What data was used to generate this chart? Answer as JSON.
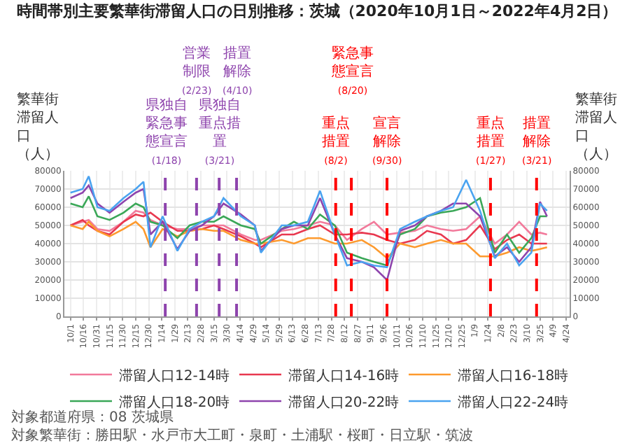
{
  "chart_data": {
    "type": "line",
    "title": "時間帯別主要繁華街滞留人口の日別推移：茨城（2020年10月1日～2022年4月2日）",
    "ylabel": "繁華街滞留人口（人）",
    "y2label": "繁華街滞留人口（人）",
    "x": [
      "2020-10-01",
      "2020-10-15",
      "2020-10-22",
      "2020-11-01",
      "2020-11-15",
      "2020-12-01",
      "2020-12-15",
      "2020-12-24",
      "2021-01-01",
      "2021-01-15",
      "2021-02-01",
      "2021-02-15",
      "2021-03-01",
      "2021-03-15",
      "2021-03-26",
      "2021-04-15",
      "2021-05-01",
      "2021-05-08",
      "2021-06-01",
      "2021-06-15",
      "2021-07-01",
      "2021-07-15",
      "2021-08-01",
      "2021-08-15",
      "2021-09-01",
      "2021-09-15",
      "2021-09-30",
      "2021-10-15",
      "2021-11-01",
      "2021-11-15",
      "2021-12-01",
      "2021-12-15",
      "2021-12-30",
      "2022-01-15",
      "2022-02-01",
      "2022-02-15",
      "2022-03-01",
      "2022-03-15",
      "2022-03-25",
      "2022-04-02"
    ],
    "series": [
      {
        "name": "滞留人口12-14時",
        "color": "#f27a9b",
        "values": [
          50000,
          52000,
          53000,
          48000,
          47000,
          52000,
          58000,
          57000,
          53000,
          50000,
          48000,
          48000,
          50000,
          50000,
          50000,
          45000,
          42000,
          42000,
          47000,
          48000,
          50000,
          52000,
          50000,
          42000,
          48000,
          52000,
          45000,
          46000,
          47000,
          50000,
          48000,
          47000,
          48000,
          55000,
          40000,
          45000,
          52000,
          45000,
          46000,
          45000
        ]
      },
      {
        "name": "滞留人口14-16時",
        "color": "#e8384f",
        "values": [
          50000,
          53000,
          50000,
          47000,
          45000,
          52000,
          56000,
          55000,
          57000,
          52000,
          47000,
          47000,
          48000,
          50000,
          48000,
          44000,
          40000,
          38000,
          45000,
          45000,
          48000,
          50000,
          45000,
          45000,
          46000,
          45000,
          42000,
          40000,
          42000,
          47000,
          45000,
          40000,
          42000,
          50000,
          37000,
          42000,
          45000,
          40000,
          40000,
          40000
        ]
      },
      {
        "name": "滞留人口16-18時",
        "color": "#fd9a2e",
        "values": [
          50000,
          48000,
          52000,
          47000,
          44000,
          48000,
          52000,
          48000,
          38000,
          48000,
          44000,
          47000,
          48000,
          47000,
          47000,
          42000,
          40000,
          40000,
          42000,
          40000,
          43000,
          43000,
          40000,
          40000,
          42000,
          38000,
          32000,
          40000,
          38000,
          40000,
          42000,
          40000,
          40000,
          33000,
          33000,
          35000,
          38000,
          36000,
          37000,
          38000
        ]
      },
      {
        "name": "滞留人口18-20時",
        "color": "#3aa757",
        "values": [
          62000,
          60000,
          66000,
          55000,
          53000,
          57000,
          62000,
          60000,
          52000,
          50000,
          43000,
          50000,
          52000,
          52000,
          55000,
          50000,
          48000,
          40000,
          48000,
          52000,
          48000,
          56000,
          50000,
          35000,
          32000,
          30000,
          28000,
          45000,
          48000,
          55000,
          57000,
          58000,
          60000,
          65000,
          35000,
          45000,
          35000,
          43000,
          55000,
          55000
        ]
      },
      {
        "name": "滞留人口20-22時",
        "color": "#8e44ad",
        "values": [
          65000,
          68000,
          72000,
          62000,
          57000,
          63000,
          68000,
          70000,
          45000,
          52000,
          37000,
          47000,
          50000,
          55000,
          62000,
          56000,
          50000,
          36000,
          48000,
          50000,
          50000,
          65000,
          45000,
          32000,
          30000,
          27000,
          20000,
          47000,
          50000,
          55000,
          58000,
          62000,
          62000,
          55000,
          33000,
          38000,
          30000,
          38000,
          63000,
          55000
        ]
      },
      {
        "name": "滞留人口22-24時",
        "color": "#4aa3f0",
        "values": [
          68000,
          70000,
          77000,
          60000,
          58000,
          65000,
          70000,
          74000,
          38000,
          55000,
          36000,
          48000,
          52000,
          55000,
          65000,
          55000,
          50000,
          35000,
          50000,
          50000,
          52000,
          69000,
          45000,
          28000,
          30000,
          28000,
          27000,
          48000,
          52000,
          55000,
          58000,
          60000,
          75000,
          58000,
          32000,
          40000,
          28000,
          35000,
          62000,
          58000
        ]
      }
    ],
    "xlim": [
      "2020-09-24",
      "2022-04-28"
    ],
    "xticks": [
      {
        "value": "2020-10-01",
        "label": "10/1"
      },
      {
        "value": "2020-10-16",
        "label": "10/16"
      },
      {
        "value": "2020-10-31",
        "label": "10/31"
      },
      {
        "value": "2020-11-15",
        "label": "11/15"
      },
      {
        "value": "2020-11-30",
        "label": "11/30"
      },
      {
        "value": "2020-12-15",
        "label": "12/15"
      },
      {
        "value": "2020-12-30",
        "label": "12/30"
      },
      {
        "value": "2021-01-14",
        "label": "1/14"
      },
      {
        "value": "2021-01-29",
        "label": "1/29"
      },
      {
        "value": "2021-02-13",
        "label": "2/13"
      },
      {
        "value": "2021-02-28",
        "label": "2/28"
      },
      {
        "value": "2021-03-15",
        "label": "3/15"
      },
      {
        "value": "2021-03-30",
        "label": "3/30"
      },
      {
        "value": "2021-04-14",
        "label": "4/14"
      },
      {
        "value": "2021-04-29",
        "label": "4/29"
      },
      {
        "value": "2021-05-14",
        "label": "5/14"
      },
      {
        "value": "2021-05-29",
        "label": "5/29"
      },
      {
        "value": "2021-06-13",
        "label": "6/13"
      },
      {
        "value": "2021-06-28",
        "label": "6/28"
      },
      {
        "value": "2021-07-13",
        "label": "7/13"
      },
      {
        "value": "2021-07-28",
        "label": "7/28"
      },
      {
        "value": "2021-08-12",
        "label": "8/12"
      },
      {
        "value": "2021-08-27",
        "label": "8/27"
      },
      {
        "value": "2021-09-11",
        "label": "9/11"
      },
      {
        "value": "2021-09-26",
        "label": "9/26"
      },
      {
        "value": "2021-10-11",
        "label": "10/11"
      },
      {
        "value": "2021-10-26",
        "label": "10/26"
      },
      {
        "value": "2021-11-10",
        "label": "11/10"
      },
      {
        "value": "2021-11-25",
        "label": "11/25"
      },
      {
        "value": "2021-12-10",
        "label": "12/10"
      },
      {
        "value": "2021-12-25",
        "label": "12/25"
      },
      {
        "value": "2022-01-09",
        "label": "1/9"
      },
      {
        "value": "2022-01-24",
        "label": "1/24"
      },
      {
        "value": "2022-02-08",
        "label": "2/8"
      },
      {
        "value": "2022-02-23",
        "label": "2/23"
      },
      {
        "value": "2022-03-10",
        "label": "3/10"
      },
      {
        "value": "2022-03-25",
        "label": "3/25"
      },
      {
        "value": "2022-04-09",
        "label": "4/9"
      },
      {
        "value": "2022-04-24",
        "label": "4/24"
      }
    ],
    "ylim": [
      0,
      80000
    ],
    "yticks": [
      0,
      10000,
      20000,
      30000,
      40000,
      50000,
      60000,
      70000,
      80000
    ],
    "y2lim": [
      0,
      80000
    ],
    "y2ticks": [
      0,
      10000,
      20000,
      30000,
      40000,
      50000,
      60000,
      70000,
      80000
    ],
    "ref_lines": [
      {
        "axis": "x",
        "value": "2021-01-18",
        "label": "県独自緊急事態宣言(1/18)",
        "color": "#8e44ad",
        "line_style": "dashed"
      },
      {
        "axis": "x",
        "value": "2021-02-23",
        "label": "営業制限(2/23)",
        "color": "#8e44ad",
        "line_style": "dashed"
      },
      {
        "axis": "x",
        "value": "2021-03-21",
        "label": "県独自重点措置(3/21)",
        "color": "#8e44ad",
        "line_style": "dashed"
      },
      {
        "axis": "x",
        "value": "2021-04-10",
        "label": "措置解除(4/10)",
        "color": "#8e44ad",
        "line_style": "dashed"
      },
      {
        "axis": "x",
        "value": "2021-08-02",
        "label": "重点措置(8/2)",
        "color": "#ff0000",
        "line_style": "dashed"
      },
      {
        "axis": "x",
        "value": "2021-08-20",
        "label": "緊急事態宣言(8/20)",
        "color": "#ff0000",
        "line_style": "dashed"
      },
      {
        "axis": "x",
        "value": "2021-09-30",
        "label": "宣言解除(9/30)",
        "color": "#ff0000",
        "line_style": "dashed"
      },
      {
        "axis": "x",
        "value": "2022-01-27",
        "label": "重点措置(1/27)",
        "color": "#ff0000",
        "line_style": "dashed"
      },
      {
        "axis": "x",
        "value": "2022-03-21",
        "label": "措置解除(3/21)",
        "color": "#ff0000",
        "line_style": "dashed"
      }
    ],
    "annotations": [
      "対象都道府県：08 茨城県",
      "対象繁華街：勝田駅・水戸市大工町・泉町・土浦駅・桜町・日立駅・筑波"
    ],
    "grid": true,
    "legend": "bottom",
    "marker": "none",
    "line_style": "solid"
  }
}
